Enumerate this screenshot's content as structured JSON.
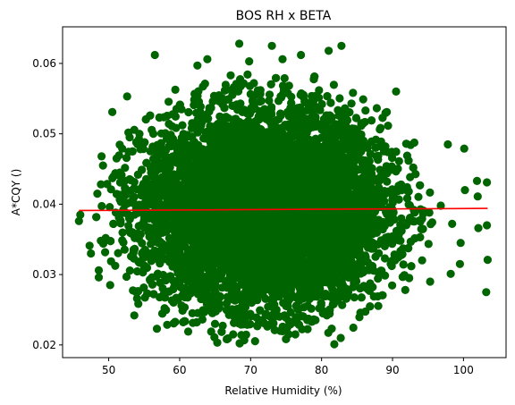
{
  "chart_data": {
    "type": "scatter",
    "title": "BOS RH x BETA",
    "xlabel": "Relative Humidity (%)",
    "ylabel": "A*CQY ()",
    "xlim": [
      43.5,
      106
    ],
    "ylim": [
      0.0182,
      0.0652
    ],
    "xticks": [
      50,
      60,
      70,
      80,
      90,
      100
    ],
    "xtick_labels": [
      "50",
      "60",
      "70",
      "80",
      "90",
      "100"
    ],
    "yticks": [
      0.02,
      0.03,
      0.04,
      0.05,
      0.06
    ],
    "ytick_labels": [
      "0.02",
      "0.03",
      "0.04",
      "0.05",
      "0.06"
    ],
    "grid": false,
    "series": [
      {
        "kind": "scatter",
        "color": "#006400",
        "distribution": {
          "x_mean": 72,
          "x_sd": 8.5,
          "x_min": 45.8,
          "x_max": 103.4,
          "y_mean": 0.0393,
          "y_sd": 0.0068,
          "y_min": 0.02,
          "y_max": 0.0628
        },
        "points": [
          {
            "x": 45.8,
            "y": 0.0376
          },
          {
            "x": 46.0,
            "y": 0.0385
          },
          {
            "x": 47.3,
            "y": 0.0341
          },
          {
            "x": 47.5,
            "y": 0.033
          },
          {
            "x": 48.4,
            "y": 0.0415
          },
          {
            "x": 48.6,
            "y": 0.0296
          },
          {
            "x": 48.6,
            "y": 0.0306
          },
          {
            "x": 49.0,
            "y": 0.0468
          },
          {
            "x": 49.2,
            "y": 0.0455
          },
          {
            "x": 50.2,
            "y": 0.0285
          },
          {
            "x": 50.5,
            "y": 0.0531
          },
          {
            "x": 52.6,
            "y": 0.0553
          },
          {
            "x": 53.6,
            "y": 0.0242
          },
          {
            "x": 54.0,
            "y": 0.0266
          },
          {
            "x": 56.5,
            "y": 0.0612
          },
          {
            "x": 56.8,
            "y": 0.0223
          },
          {
            "x": 61.2,
            "y": 0.0219
          },
          {
            "x": 61.8,
            "y": 0.0245
          },
          {
            "x": 62.5,
            "y": 0.0597
          },
          {
            "x": 63.9,
            "y": 0.0606
          },
          {
            "x": 64.9,
            "y": 0.0211
          },
          {
            "x": 68.4,
            "y": 0.0628
          },
          {
            "x": 69.8,
            "y": 0.0603
          },
          {
            "x": 71.0,
            "y": 0.0228
          },
          {
            "x": 73.0,
            "y": 0.0625
          },
          {
            "x": 74.2,
            "y": 0.022
          },
          {
            "x": 74.5,
            "y": 0.0606
          },
          {
            "x": 77.1,
            "y": 0.0612
          },
          {
            "x": 78.6,
            "y": 0.0233
          },
          {
            "x": 81.0,
            "y": 0.0618
          },
          {
            "x": 81.8,
            "y": 0.0201
          },
          {
            "x": 82.7,
            "y": 0.021
          },
          {
            "x": 82.8,
            "y": 0.0625
          },
          {
            "x": 90.5,
            "y": 0.056
          },
          {
            "x": 91.8,
            "y": 0.0278
          },
          {
            "x": 95.3,
            "y": 0.029
          },
          {
            "x": 96.8,
            "y": 0.0398
          },
          {
            "x": 97.8,
            "y": 0.0485
          },
          {
            "x": 98.2,
            "y": 0.0301
          },
          {
            "x": 98.4,
            "y": 0.0372
          },
          {
            "x": 99.5,
            "y": 0.0315
          },
          {
            "x": 99.6,
            "y": 0.0345
          },
          {
            "x": 100.1,
            "y": 0.0479
          },
          {
            "x": 100.2,
            "y": 0.042
          },
          {
            "x": 101.9,
            "y": 0.0433
          },
          {
            "x": 102.0,
            "y": 0.0411
          },
          {
            "x": 102.1,
            "y": 0.0366
          },
          {
            "x": 103.3,
            "y": 0.0431
          },
          {
            "x": 103.3,
            "y": 0.037
          },
          {
            "x": 103.4,
            "y": 0.0321
          },
          {
            "x": 103.2,
            "y": 0.0275
          }
        ]
      },
      {
        "kind": "line",
        "color": "#ff0000",
        "x": [
          45.8,
          103.4
        ],
        "y": [
          0.0391,
          0.0394
        ]
      }
    ]
  }
}
